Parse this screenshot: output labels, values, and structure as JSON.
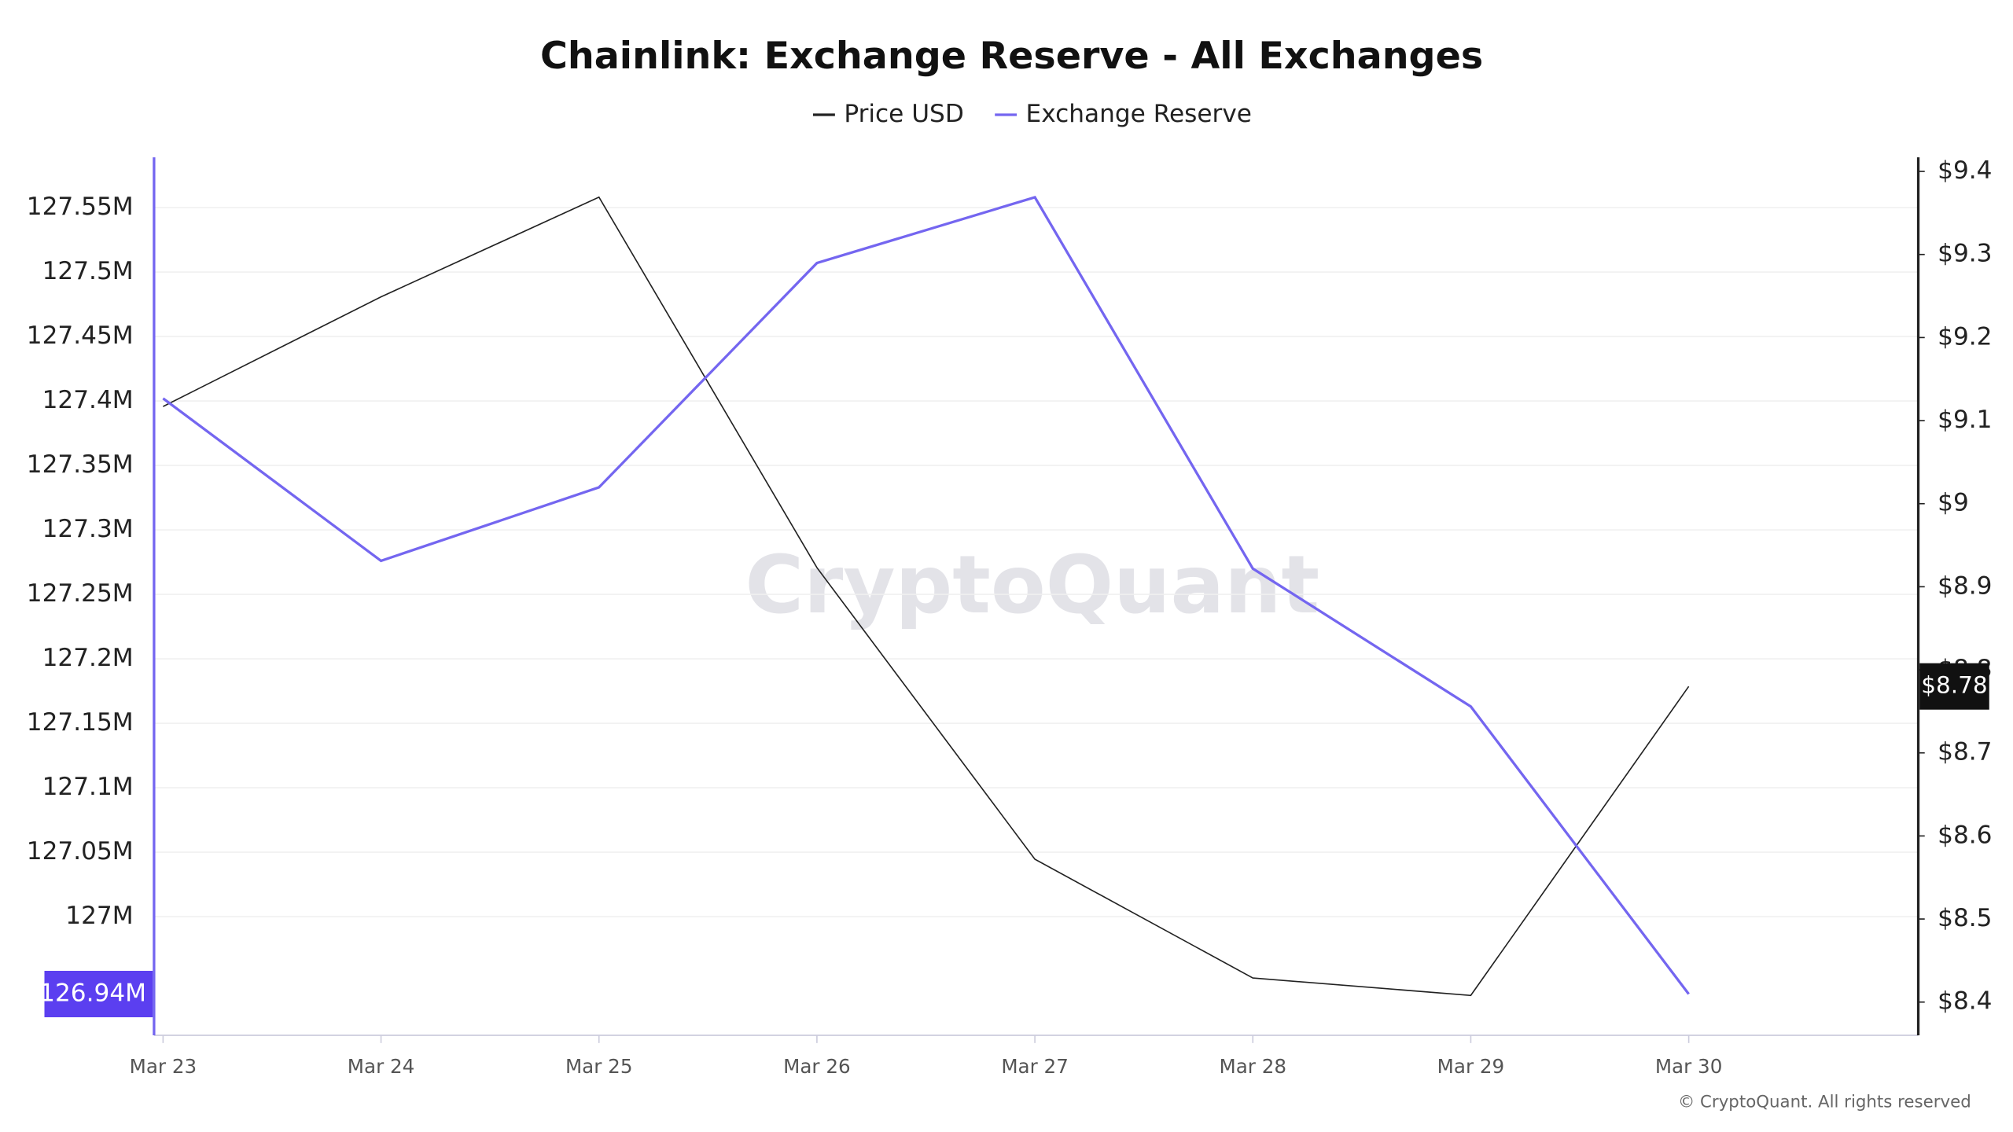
{
  "chart_data": {
    "type": "line",
    "title": "Chainlink: Exchange Reserve - All Exchanges",
    "categories": [
      "Mar 23",
      "Mar 24",
      "Mar 25",
      "Mar 26",
      "Mar 27",
      "Mar 28",
      "Mar 29",
      "Mar 30"
    ],
    "series": [
      {
        "name": "Price USD",
        "color": "#222222",
        "axis": "y2",
        "values": [
          9.117,
          9.249,
          9.369,
          8.923,
          8.572,
          8.429,
          8.408,
          8.78
        ],
        "value_labels": [
          null,
          null,
          null,
          null,
          null,
          null,
          null,
          "$8.78"
        ]
      },
      {
        "name": "Exchange Reserve",
        "color": "#7466f0",
        "values": [
          127402000,
          127276000,
          127333000,
          127507000,
          127558000,
          127270000,
          127163000,
          126940000
        ],
        "value_labels": [
          null,
          null,
          null,
          null,
          null,
          null,
          null,
          "126.94M"
        ]
      }
    ],
    "ylim": [
      126908000,
      127589000
    ],
    "yticks": [
      {
        "value": 127000000,
        "label": "127M"
      },
      {
        "value": 127050000,
        "label": "127.05M"
      },
      {
        "value": 127100000,
        "label": "127.1M"
      },
      {
        "value": 127150000,
        "label": "127.15M"
      },
      {
        "value": 127200000,
        "label": "127.2M"
      },
      {
        "value": 127250000,
        "label": "127.25M"
      },
      {
        "value": 127300000,
        "label": "127.3M"
      },
      {
        "value": 127350000,
        "label": "127.35M"
      },
      {
        "value": 127400000,
        "label": "127.4M"
      },
      {
        "value": 127450000,
        "label": "127.45M"
      },
      {
        "value": 127500000,
        "label": "127.5M"
      },
      {
        "value": 127550000,
        "label": "127.55M"
      }
    ],
    "y2lim": [
      8.36,
      9.417
    ],
    "y2ticks": [
      {
        "value": 8.4,
        "label": "$8.4"
      },
      {
        "value": 8.5,
        "label": "$8.5"
      },
      {
        "value": 8.6,
        "label": "$8.6"
      },
      {
        "value": 8.7,
        "label": "$8.7"
      },
      {
        "value": 8.8,
        "label": "$8.8"
      },
      {
        "value": 8.9,
        "label": "$8.9"
      },
      {
        "value": 9,
        "label": "$9"
      },
      {
        "value": 9.1,
        "label": "$9.1"
      },
      {
        "value": 9.2,
        "label": "$9.2"
      },
      {
        "value": 9.3,
        "label": "$9.3"
      },
      {
        "value": 9.4,
        "label": "$9.4"
      }
    ],
    "grid": true,
    "legend": "top",
    "watermark": "CryptoQuant",
    "copyright": "© CryptoQuant. All rights reserved"
  }
}
